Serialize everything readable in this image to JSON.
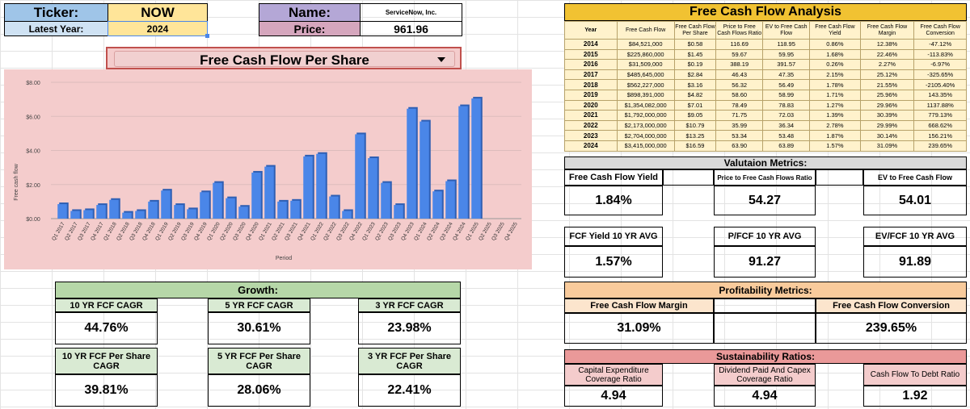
{
  "info": {
    "ticker_label": "Ticker:",
    "ticker": "NOW",
    "year_label": "Latest Year:",
    "year": "2024",
    "name_label": "Name:",
    "name": "ServiceNow, Inc.",
    "price_label": "Price:",
    "price": "961.96"
  },
  "dropdown": {
    "selected": "Free Cash Flow Per Share"
  },
  "chart_data": {
    "type": "bar",
    "ylabel": "Free cash flow",
    "xlabel": "Period",
    "ylim": [
      0,
      8
    ],
    "y_ticks": [
      "$0.00",
      "$2.00",
      "$4.00",
      "$6.00",
      "$8.00"
    ],
    "grid": true,
    "categories": [
      "Q1 2017",
      "Q2 2017",
      "Q3 2017",
      "Q4 2017",
      "Q1 2018",
      "Q2 2018",
      "Q3 2018",
      "Q4 2018",
      "Q1 2019",
      "Q2 2019",
      "Q3 2019",
      "Q4 2019",
      "Q1 2020",
      "Q2 2020",
      "Q3 2020",
      "Q4 2020",
      "Q1 2021",
      "Q2 2021",
      "Q3 2021",
      "Q4 2021",
      "Q1 2022",
      "Q2 2022",
      "Q3 2022",
      "Q4 2022",
      "Q1 2023",
      "Q2 2023",
      "Q3 2023",
      "Q4 2023",
      "Q1 2024",
      "Q2 2024",
      "Q3 2024",
      "Q4 2024",
      "Q1 2025",
      "Q2 2025",
      "Q3 2025",
      "Q4 2025"
    ],
    "values": [
      0.85,
      0.45,
      0.5,
      0.8,
      1.1,
      0.35,
      0.45,
      1.0,
      1.65,
      0.8,
      0.55,
      1.55,
      2.1,
      1.2,
      0.7,
      2.7,
      3.05,
      1.0,
      1.05,
      3.65,
      3.8,
      1.3,
      0.45,
      4.95,
      3.55,
      2.1,
      0.8,
      6.45,
      5.7,
      1.6,
      2.2,
      6.6,
      7.05,
      null,
      null,
      null
    ],
    "bar_color": "#4a86e8"
  },
  "fcf_analysis": {
    "title": "Free Cash Flow Analysis",
    "headers": [
      "Year",
      "Free Cash Flow",
      "Free Cash Flow Per Share",
      "Price to Free Cash Flows Ratio",
      "EV to Free Cash Flow",
      "Free Cash Flow Yield",
      "Free Cash Flow Margin",
      "Free Cash Flow Conversion"
    ],
    "rows": [
      [
        "2014",
        "$84,521,000",
        "$0.58",
        "116.69",
        "118.95",
        "0.86%",
        "12.38%",
        "-47.12%"
      ],
      [
        "2015",
        "$225,860,000",
        "$1.45",
        "59.67",
        "59.95",
        "1.68%",
        "22.46%",
        "-113.83%"
      ],
      [
        "2016",
        "$31,509,000",
        "$0.19",
        "388.19",
        "391.57",
        "0.26%",
        "2.27%",
        "-6.97%"
      ],
      [
        "2017",
        "$485,645,000",
        "$2.84",
        "46.43",
        "47.35",
        "2.15%",
        "25.12%",
        "-325.65%"
      ],
      [
        "2018",
        "$562,227,000",
        "$3.16",
        "56.32",
        "56.49",
        "1.78%",
        "21.55%",
        "-2105.40%"
      ],
      [
        "2019",
        "$898,391,000",
        "$4.82",
        "58.60",
        "58.99",
        "1.71%",
        "25.96%",
        "143.35%"
      ],
      [
        "2020",
        "$1,354,082,000",
        "$7.01",
        "78.49",
        "78.83",
        "1.27%",
        "29.96%",
        "1137.88%"
      ],
      [
        "2021",
        "$1,792,000,000",
        "$9.05",
        "71.75",
        "72.03",
        "1.39%",
        "30.39%",
        "779.13%"
      ],
      [
        "2022",
        "$2,173,000,000",
        "$10.79",
        "35.99",
        "36.34",
        "2.78%",
        "29.99%",
        "668.62%"
      ],
      [
        "2023",
        "$2,704,000,000",
        "$13.25",
        "53.34",
        "53.48",
        "1.87%",
        "30.14%",
        "156.21%"
      ],
      [
        "2024",
        "$3,415,000,000",
        "$16.59",
        "63.90",
        "63.89",
        "1.57%",
        "31.09%",
        "239.65%"
      ]
    ]
  },
  "valuation": {
    "title": "Valutaion Metrics:",
    "fcf_yield_label": "Free Cash Flow Yield",
    "fcf_yield": "1.84%",
    "p_fcf_label": "Price to Free Cash Flows Ratio",
    "p_fcf": "54.27",
    "ev_fcf_label": "EV to Free Cash Flow",
    "ev_fcf": "54.01",
    "yield_avg_label": "FCF Yield 10 YR AVG",
    "yield_avg": "1.57%",
    "p_fcf_avg_label": "P/FCF 10 YR AVG",
    "p_fcf_avg": "91.27",
    "ev_fcf_avg_label": "EV/FCF 10 YR AVG",
    "ev_fcf_avg": "91.89"
  },
  "growth": {
    "title": "Growth:",
    "c10_label": "10 YR FCF CAGR",
    "c10": "44.76%",
    "c5_label": "5 YR FCF CAGR",
    "c5": "30.61%",
    "c3_label": "3 YR FCF CAGR",
    "c3": "23.98%",
    "ps10_label_1": "10 YR FCF Per Share",
    "ps10_label_2": "CAGR",
    "ps10": "39.81%",
    "ps5_label_1": "5 YR FCF Per Share",
    "ps5_label_2": "CAGR",
    "ps5": "28.06%",
    "ps3_label_1": "3 YR FCF Per Share",
    "ps3_label_2": "CAGR",
    "ps3": "22.41%"
  },
  "profitability": {
    "title": "Profitability Metrics:",
    "margin_label": "Free Cash Flow Margin",
    "margin": "31.09%",
    "conversion_label": "Free Cash Flow Conversion",
    "conversion": "239.65%"
  },
  "sustainability": {
    "title": "Sustainability Ratios:",
    "capex_label_1": "Capital Expenditure",
    "capex_label_2": "Coverage Ratio",
    "capex": "4.94",
    "div_label_1": "Dividend Paid And Capex",
    "div_label_2": "Coverage Ratio",
    "div": "4.94",
    "debt_label": "Cash Flow To Debt Ratio",
    "debt": "1.92"
  }
}
